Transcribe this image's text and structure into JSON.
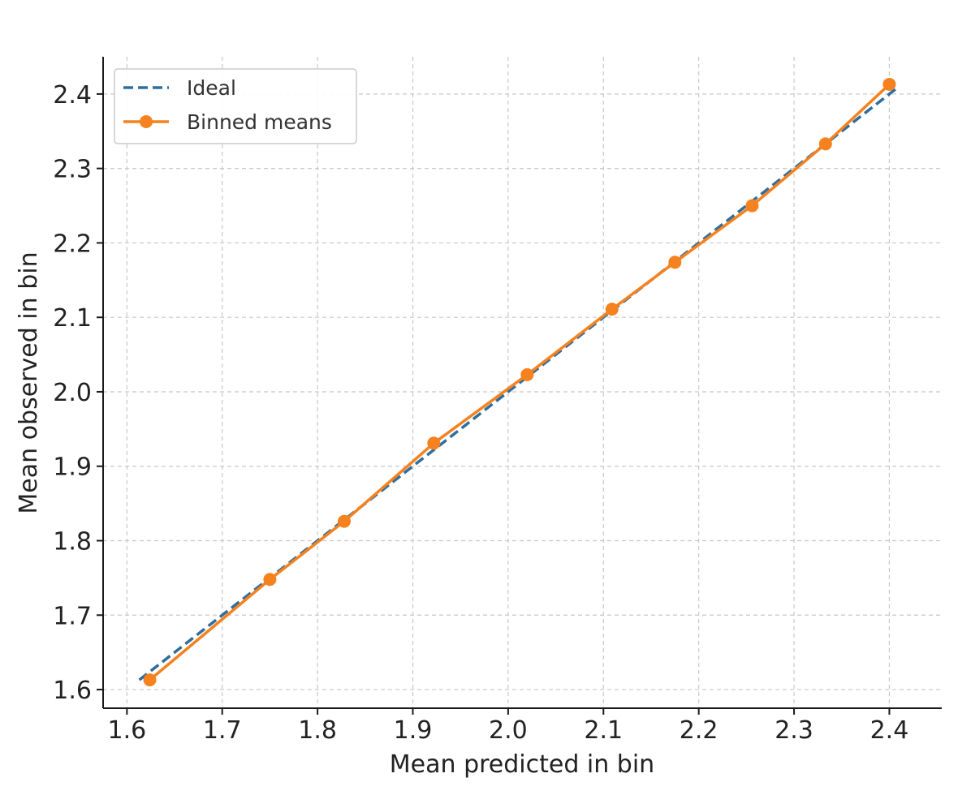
{
  "chart_data": {
    "type": "line",
    "title": "",
    "xlabel": "Mean predicted in bin",
    "ylabel": "Mean observed in bin",
    "xlim": [
      1.575,
      2.455
    ],
    "ylim": [
      1.575,
      2.45
    ],
    "xticks": [
      "1.6",
      "1.7",
      "1.8",
      "1.9",
      "2.0",
      "2.1",
      "2.2",
      "2.3",
      "2.4"
    ],
    "yticks": [
      "1.6",
      "1.7",
      "1.8",
      "1.9",
      "2.0",
      "2.1",
      "2.2",
      "2.3",
      "2.4"
    ],
    "grid": true,
    "legend_position": "top-left",
    "series": [
      {
        "name": "Ideal",
        "style": "dashed",
        "color": "#2e6e9e",
        "x": [
          1.613,
          2.41
        ],
        "y": [
          1.613,
          2.41
        ]
      },
      {
        "name": "Binned means",
        "style": "solid-markers",
        "color": "#f5821f",
        "x": [
          1.624,
          1.75,
          1.828,
          1.922,
          2.02,
          2.109,
          2.175,
          2.256,
          2.333,
          2.4
        ],
        "y": [
          1.613,
          1.748,
          1.826,
          1.931,
          2.023,
          2.111,
          2.174,
          2.25,
          2.333,
          2.413
        ]
      }
    ]
  }
}
